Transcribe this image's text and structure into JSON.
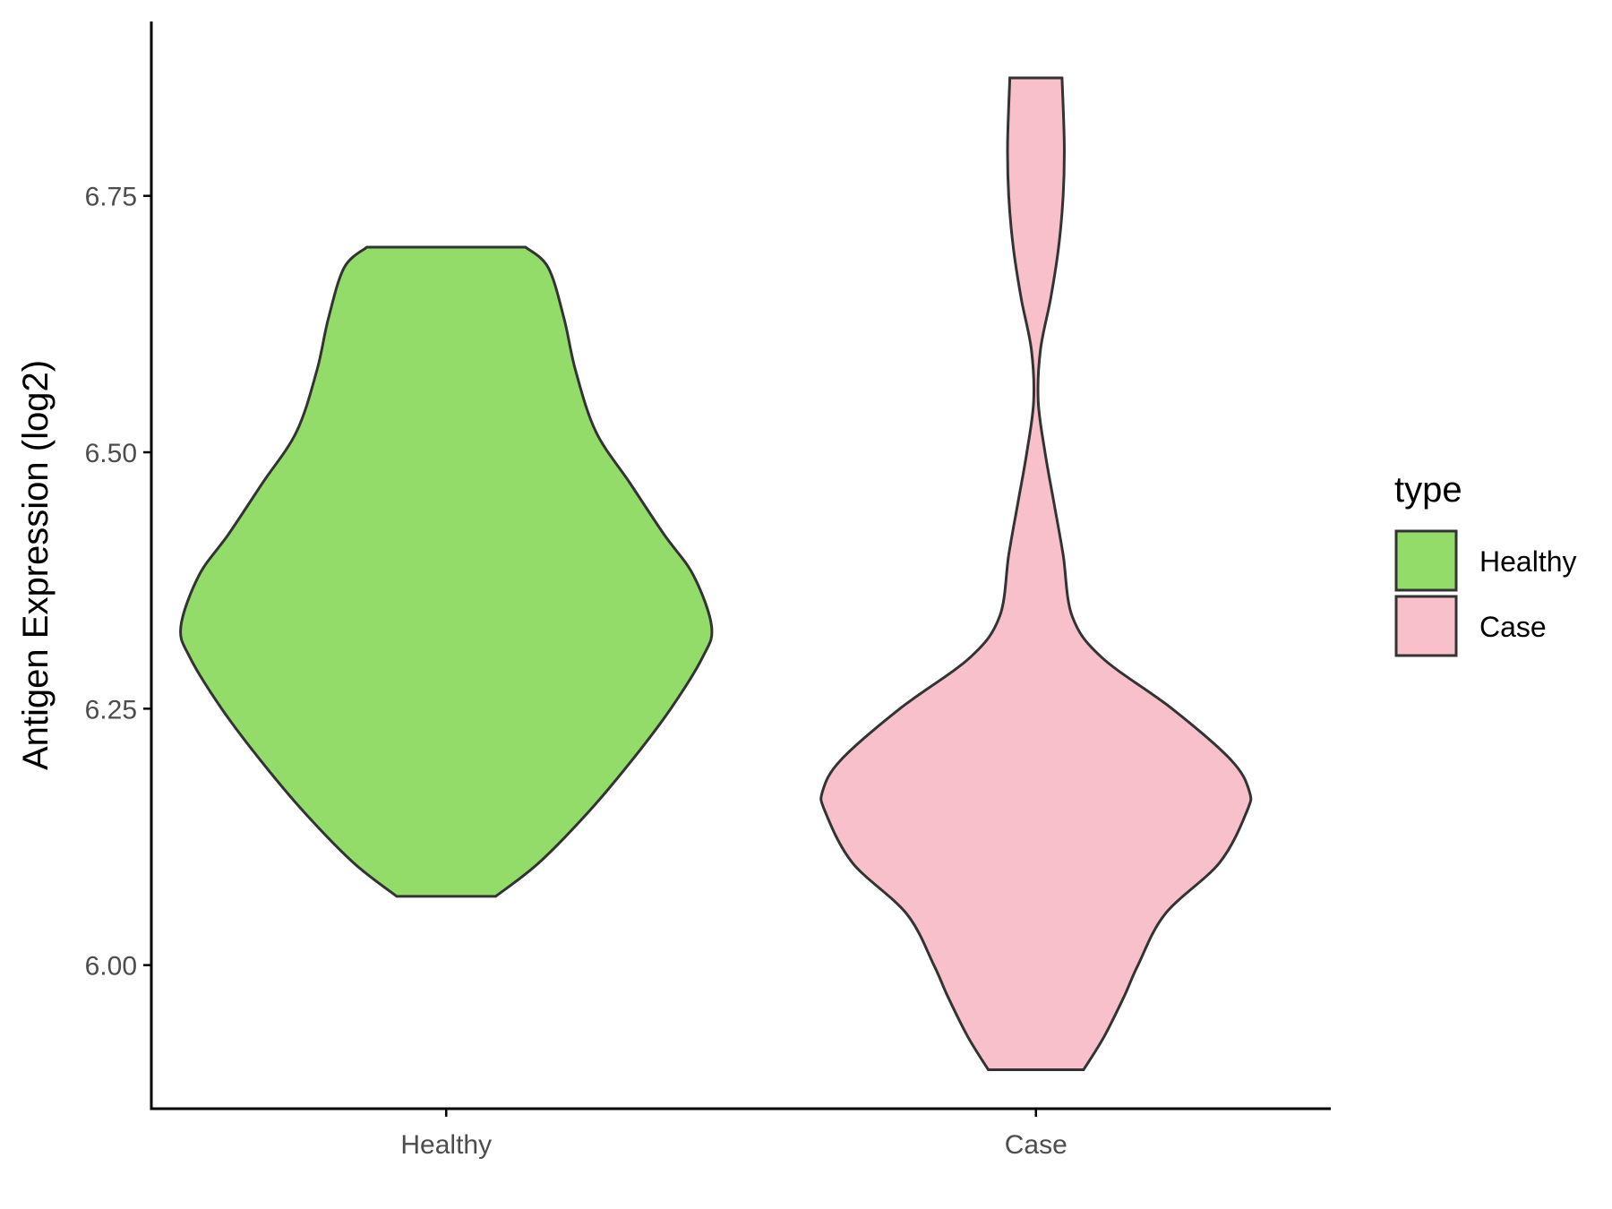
{
  "chart_data": {
    "type": "violin",
    "ylabel": "Antigen Expression (log2)",
    "xlabel": "",
    "categories": [
      "Healthy",
      "Case"
    ],
    "ylim": [
      5.86,
      6.92
    ],
    "yticks": [
      6.0,
      6.25,
      6.5,
      6.75
    ],
    "ytick_labels": [
      "6.00",
      "6.25",
      "6.50",
      "6.75"
    ],
    "grid": false,
    "legend": {
      "title": "type",
      "placement": "right",
      "entries": [
        {
          "label": "Healthy",
          "color": "#93dc6a"
        },
        {
          "label": "Case",
          "color": "#f7c0cb"
        }
      ]
    },
    "series": [
      {
        "category": "Healthy",
        "color": "#93dc6a",
        "min": 6.067,
        "max": 6.7,
        "density_profile": [
          [
            6.067,
            0.218
          ],
          [
            6.1,
            0.41
          ],
          [
            6.15,
            0.63
          ],
          [
            6.2,
            0.82
          ],
          [
            6.25,
            0.99
          ],
          [
            6.3,
            1.13
          ],
          [
            6.33,
            1.17
          ],
          [
            6.38,
            1.09
          ],
          [
            6.42,
            0.96
          ],
          [
            6.47,
            0.81
          ],
          [
            6.52,
            0.66
          ],
          [
            6.58,
            0.57
          ],
          [
            6.63,
            0.52
          ],
          [
            6.68,
            0.45
          ],
          [
            6.7,
            0.35
          ]
        ]
      },
      {
        "category": "Case",
        "color": "#f7c0cb",
        "min": 5.898,
        "max": 6.865,
        "density_profile": [
          [
            5.898,
            0.21
          ],
          [
            5.93,
            0.3
          ],
          [
            5.97,
            0.39
          ],
          [
            6.0,
            0.45
          ],
          [
            6.05,
            0.57
          ],
          [
            6.1,
            0.81
          ],
          [
            6.15,
            0.93
          ],
          [
            6.17,
            0.94
          ],
          [
            6.2,
            0.86
          ],
          [
            6.25,
            0.6
          ],
          [
            6.3,
            0.29
          ],
          [
            6.34,
            0.16
          ],
          [
            6.4,
            0.12
          ],
          [
            6.45,
            0.08
          ],
          [
            6.5,
            0.04
          ],
          [
            6.55,
            0.01
          ],
          [
            6.6,
            0.02
          ],
          [
            6.65,
            0.065
          ],
          [
            6.7,
            0.1
          ],
          [
            6.75,
            0.12
          ],
          [
            6.8,
            0.125
          ],
          [
            6.865,
            0.115
          ]
        ]
      }
    ]
  }
}
